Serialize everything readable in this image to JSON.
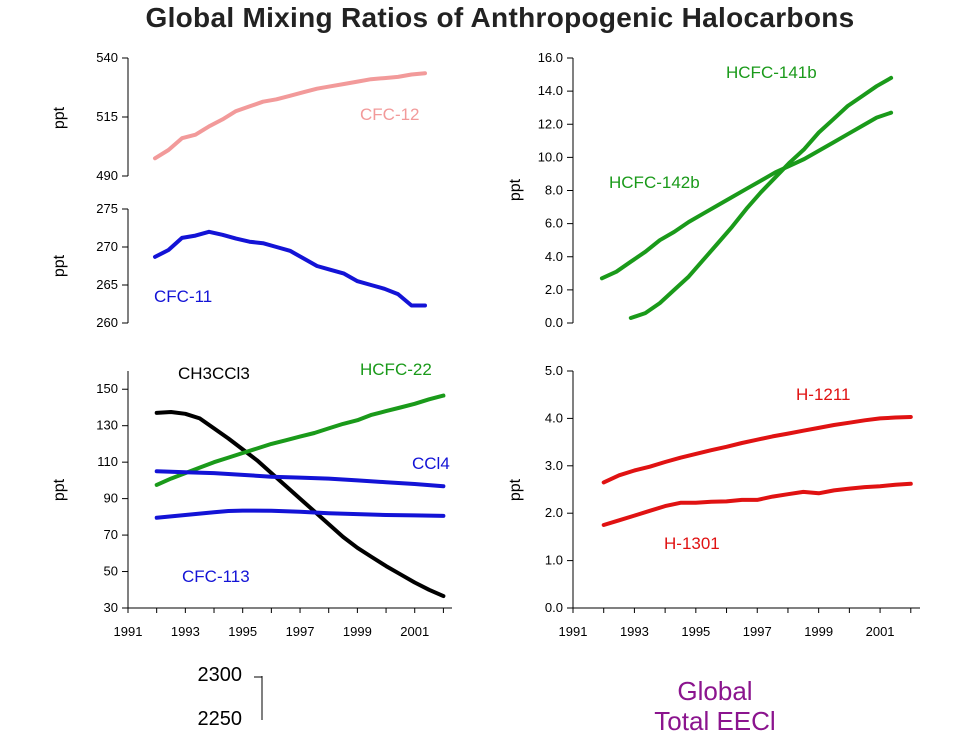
{
  "title": "Global Mixing Ratios of Anthropogenic Halocarbons",
  "chart_data": [
    {
      "type": "line",
      "id": "cfc12",
      "ylabel": "ppt",
      "ylim": [
        490,
        540
      ],
      "yticks": [
        "490",
        "515",
        "540"
      ],
      "xlim": [
        1991,
        2003
      ],
      "series": [
        {
          "name": "CFC-12",
          "color": "#f29a9a",
          "points": [
            [
              1992.0,
              497.5
            ],
            [
              1992.5,
              501
            ],
            [
              1993.0,
              506
            ],
            [
              1993.5,
              507.5
            ],
            [
              1994.0,
              511
            ],
            [
              1994.5,
              514
            ],
            [
              1995.0,
              517.5
            ],
            [
              1995.5,
              519.5
            ],
            [
              1996.0,
              521.5
            ],
            [
              1996.5,
              522.5
            ],
            [
              1997.0,
              524
            ],
            [
              1997.5,
              525.5
            ],
            [
              1998.0,
              527
            ],
            [
              1998.5,
              528
            ],
            [
              1999.0,
              529
            ],
            [
              1999.5,
              530
            ],
            [
              2000.0,
              531
            ],
            [
              2000.5,
              531.5
            ],
            [
              2001.0,
              532
            ],
            [
              2001.5,
              533
            ],
            [
              2002.0,
              533.5
            ]
          ]
        }
      ],
      "labels": [
        {
          "text": "CFC-12",
          "color": "#f29a9a"
        }
      ]
    },
    {
      "type": "line",
      "id": "cfc11",
      "ylabel": "ppt",
      "ylim": [
        260,
        275
      ],
      "yticks": [
        "260",
        "265",
        "270",
        "275"
      ],
      "xlim": [
        1991,
        2003
      ],
      "series": [
        {
          "name": "CFC-11",
          "color": "#1313d6",
          "points": [
            [
              1992.0,
              268.7
            ],
            [
              1992.5,
              269.6
            ],
            [
              1993.0,
              271.2
            ],
            [
              1993.5,
              271.5
            ],
            [
              1994.0,
              272.0
            ],
            [
              1994.5,
              271.6
            ],
            [
              1995.0,
              271.1
            ],
            [
              1995.5,
              270.7
            ],
            [
              1996.0,
              270.5
            ],
            [
              1996.5,
              270.0
            ],
            [
              1997.0,
              269.5
            ],
            [
              1997.5,
              268.5
            ],
            [
              1998.0,
              267.5
            ],
            [
              1998.5,
              267.0
            ],
            [
              1999.0,
              266.5
            ],
            [
              1999.5,
              265.5
            ],
            [
              2000.0,
              265.0
            ],
            [
              2000.5,
              264.5
            ],
            [
              2001.0,
              263.8
            ],
            [
              2001.5,
              262.3
            ],
            [
              2002.0,
              262.3
            ]
          ]
        }
      ],
      "labels": [
        {
          "text": "CFC-11",
          "color": "#1313d6"
        }
      ]
    },
    {
      "type": "line",
      "id": "hcfc141b",
      "ylabel": "ppt",
      "ylim": [
        0,
        16
      ],
      "yticks": [
        "0.0",
        "2.0",
        "4.0",
        "6.0",
        "8.0",
        "10.0",
        "12.0",
        "14.0",
        "16.0"
      ],
      "xlim": [
        1991,
        2003
      ],
      "series": [
        {
          "name": "HCFC-141b",
          "color": "#1a9a1a",
          "points": [
            [
              1993.0,
              0.3
            ],
            [
              1993.5,
              0.6
            ],
            [
              1994.0,
              1.2
            ],
            [
              1994.5,
              2.0
            ],
            [
              1995.0,
              2.8
            ],
            [
              1995.5,
              3.8
            ],
            [
              1996.0,
              4.8
            ],
            [
              1996.5,
              5.8
            ],
            [
              1997.0,
              6.9
            ],
            [
              1997.5,
              7.9
            ],
            [
              1998.0,
              8.8
            ],
            [
              1998.5,
              9.7
            ],
            [
              1999.0,
              10.5
            ],
            [
              1999.5,
              11.5
            ],
            [
              2000.0,
              12.3
            ],
            [
              2000.5,
              13.1
            ],
            [
              2001.0,
              13.7
            ],
            [
              2001.5,
              14.3
            ],
            [
              2002.0,
              14.8
            ]
          ]
        },
        {
          "name": "HCFC-142b",
          "color": "#1a9a1a",
          "points": [
            [
              1992.0,
              2.7
            ],
            [
              1992.5,
              3.1
            ],
            [
              1993.0,
              3.7
            ],
            [
              1993.5,
              4.3
            ],
            [
              1994.0,
              5.0
            ],
            [
              1994.5,
              5.5
            ],
            [
              1995.0,
              6.1
            ],
            [
              1995.5,
              6.6
            ],
            [
              1996.0,
              7.1
            ],
            [
              1996.5,
              7.6
            ],
            [
              1997.0,
              8.1
            ],
            [
              1997.5,
              8.6
            ],
            [
              1998.0,
              9.1
            ],
            [
              1998.5,
              9.5
            ],
            [
              1999.0,
              9.9
            ],
            [
              1999.5,
              10.4
            ],
            [
              2000.0,
              10.9
            ],
            [
              2000.5,
              11.4
            ],
            [
              2001.0,
              11.9
            ],
            [
              2001.5,
              12.4
            ],
            [
              2002.0,
              12.7
            ]
          ]
        }
      ],
      "labels": [
        {
          "text": "HCFC-141b",
          "color": "#1a9a1a"
        },
        {
          "text": "HCFC-142b",
          "color": "#1a9a1a"
        }
      ]
    },
    {
      "type": "line",
      "id": "big",
      "ylabel": "ppt",
      "ylim": [
        30,
        160
      ],
      "yticks": [
        "30",
        "50",
        "70",
        "90",
        "110",
        "130",
        "150"
      ],
      "xlim": [
        1991,
        2002.3
      ],
      "xticks": [
        "1991",
        "1993",
        "1995",
        "1997",
        "1999",
        "2001"
      ],
      "series": [
        {
          "name": "CH3CCl3",
          "color": "#000000",
          "points": [
            [
              1992.0,
              137
            ],
            [
              1992.5,
              137.5
            ],
            [
              1993.0,
              136.5
            ],
            [
              1993.5,
              134
            ],
            [
              1994.0,
              128.5
            ],
            [
              1994.5,
              123
            ],
            [
              1995.0,
              117
            ],
            [
              1995.5,
              111
            ],
            [
              1996.0,
              104
            ],
            [
              1996.5,
              97
            ],
            [
              1997.0,
              90
            ],
            [
              1997.5,
              83
            ],
            [
              1998.0,
              76
            ],
            [
              1998.5,
              69
            ],
            [
              1999.0,
              63
            ],
            [
              1999.5,
              58
            ],
            [
              2000.0,
              53
            ],
            [
              2000.5,
              48.5
            ],
            [
              2001.0,
              44
            ],
            [
              2001.5,
              40
            ],
            [
              2002.0,
              36.5
            ]
          ]
        },
        {
          "name": "HCFC-22",
          "color": "#1a9a1a",
          "points": [
            [
              1992.0,
              97.5
            ],
            [
              1992.5,
              101
            ],
            [
              1993.0,
              104
            ],
            [
              1993.5,
              107
            ],
            [
              1994.0,
              110
            ],
            [
              1994.5,
              112.5
            ],
            [
              1995.0,
              115
            ],
            [
              1995.5,
              117.5
            ],
            [
              1996.0,
              120
            ],
            [
              1996.5,
              122
            ],
            [
              1997.0,
              124
            ],
            [
              1997.5,
              126
            ],
            [
              1998.0,
              128.5
            ],
            [
              1998.5,
              131
            ],
            [
              1999.0,
              133
            ],
            [
              1999.5,
              136
            ],
            [
              2000.0,
              138
            ],
            [
              2000.5,
              140
            ],
            [
              2001.0,
              142
            ],
            [
              2001.5,
              144.5
            ],
            [
              2002.0,
              146.5
            ]
          ]
        },
        {
          "name": "CCl4",
          "color": "#1313d6",
          "points": [
            [
              1992.0,
              105
            ],
            [
              1993.0,
              104.5
            ],
            [
              1994.0,
              104
            ],
            [
              1995.0,
              103
            ],
            [
              1996.0,
              102
            ],
            [
              1997.0,
              101.5
            ],
            [
              1998.0,
              101
            ],
            [
              1999.0,
              100
            ],
            [
              2000.0,
              99
            ],
            [
              2001.0,
              98
            ],
            [
              2002.0,
              96.8
            ]
          ]
        },
        {
          "name": "CFC-113",
          "color": "#1313d6",
          "points": [
            [
              1992.0,
              79.5
            ],
            [
              1993.0,
              81
            ],
            [
              1994.0,
              82.5
            ],
            [
              1994.5,
              83.2
            ],
            [
              1995.0,
              83.4
            ],
            [
              1996.0,
              83.3
            ],
            [
              1997.0,
              82.8
            ],
            [
              1998.0,
              82
            ],
            [
              1999.0,
              81.5
            ],
            [
              2000.0,
              81
            ],
            [
              2001.0,
              80.8
            ],
            [
              2002.0,
              80.5
            ]
          ]
        }
      ],
      "labels": [
        {
          "text": "CH3CCl3",
          "color": "#000000"
        },
        {
          "text": "HCFC-22",
          "color": "#1a9a1a"
        },
        {
          "text": "CCl4",
          "color": "#1313d6"
        },
        {
          "text": "CFC-113",
          "color": "#1313d6"
        }
      ]
    },
    {
      "type": "line",
      "id": "halons",
      "ylabel": "ppt",
      "ylim": [
        0,
        5
      ],
      "yticks": [
        "0.0",
        "1.0",
        "2.0",
        "3.0",
        "4.0",
        "5.0"
      ],
      "xlim": [
        1991,
        2002.3
      ],
      "xticks": [
        "1991",
        "1993",
        "1995",
        "1997",
        "1999",
        "2001"
      ],
      "series": [
        {
          "name": "H-1211",
          "color": "#e01212",
          "points": [
            [
              1992.0,
              2.65
            ],
            [
              1992.5,
              2.8
            ],
            [
              1993.0,
              2.9
            ],
            [
              1993.5,
              2.98
            ],
            [
              1994.0,
              3.08
            ],
            [
              1994.5,
              3.17
            ],
            [
              1995.0,
              3.25
            ],
            [
              1995.5,
              3.33
            ],
            [
              1996.0,
              3.4
            ],
            [
              1996.5,
              3.48
            ],
            [
              1997.0,
              3.55
            ],
            [
              1997.5,
              3.62
            ],
            [
              1998.0,
              3.68
            ],
            [
              1998.5,
              3.74
            ],
            [
              1999.0,
              3.8
            ],
            [
              1999.5,
              3.86
            ],
            [
              2000.0,
              3.91
            ],
            [
              2000.5,
              3.96
            ],
            [
              2001.0,
              4.0
            ],
            [
              2001.5,
              4.02
            ],
            [
              2002.0,
              4.03
            ]
          ]
        },
        {
          "name": "H-1301",
          "color": "#e01212",
          "points": [
            [
              1992.0,
              1.75
            ],
            [
              1992.5,
              1.85
            ],
            [
              1993.0,
              1.95
            ],
            [
              1993.5,
              2.05
            ],
            [
              1994.0,
              2.15
            ],
            [
              1994.5,
              2.22
            ],
            [
              1995.0,
              2.22
            ],
            [
              1995.5,
              2.24
            ],
            [
              1996.0,
              2.25
            ],
            [
              1996.5,
              2.28
            ],
            [
              1997.0,
              2.28
            ],
            [
              1997.5,
              2.35
            ],
            [
              1998.0,
              2.4
            ],
            [
              1998.5,
              2.45
            ],
            [
              1999.0,
              2.42
            ],
            [
              1999.5,
              2.48
            ],
            [
              2000.0,
              2.52
            ],
            [
              2000.5,
              2.55
            ],
            [
              2001.0,
              2.57
            ],
            [
              2001.5,
              2.6
            ],
            [
              2002.0,
              2.62
            ]
          ]
        }
      ],
      "labels": [
        {
          "text": "H-1211",
          "color": "#e01212"
        },
        {
          "text": "H-1301",
          "color": "#e01212"
        }
      ]
    }
  ],
  "teql": {
    "title_line1": "Global",
    "title_line2": "Total EECl",
    "yticks": [
      "2300",
      "2250"
    ]
  }
}
